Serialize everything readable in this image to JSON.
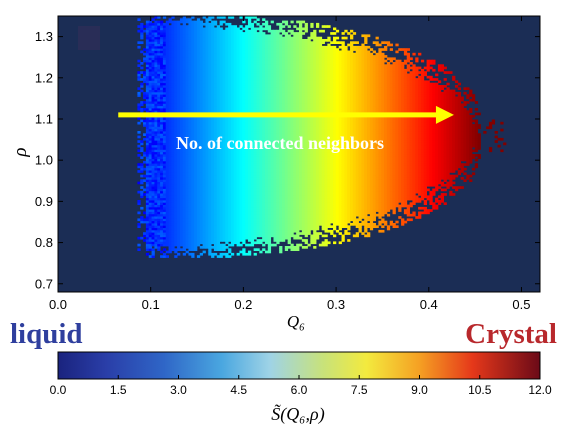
{
  "chart_data": {
    "type": "heatmap",
    "title": "",
    "xlabel": "Q₆",
    "ylabel": "ρ",
    "xlim": [
      0.0,
      0.52
    ],
    "ylim": [
      0.68,
      1.35
    ],
    "x_ticks": [
      0.0,
      0.1,
      0.2,
      0.3,
      0.4,
      0.5
    ],
    "x_tick_labels": [
      "0.0",
      "0.1",
      "0.2",
      "0.3",
      "0.4",
      "0.5"
    ],
    "y_ticks": [
      0.7,
      0.8,
      0.9,
      1.0,
      1.1,
      1.2,
      1.3
    ],
    "y_tick_labels": [
      "0.7",
      "0.8",
      "0.9",
      "1.0",
      "1.1",
      "1.2",
      "1.3"
    ],
    "colormap": "jet",
    "background_color": "#1b2d55",
    "colorbar": {
      "label": "S̃(Q₆,ρ)",
      "range": [
        0.0,
        12.0
      ],
      "ticks": [
        0.0,
        1.5,
        3.0,
        4.5,
        6.0,
        7.5,
        9.0,
        10.5,
        12.0
      ],
      "tick_labels": [
        "0.0",
        "1.5",
        "3.0",
        "4.5",
        "6.0",
        "7.5",
        "9.0",
        "10.5",
        "12.0"
      ],
      "orientation": "horizontal"
    },
    "distribution": {
      "description_region": "populated region in (Q6, rho)",
      "q6_min": 0.095,
      "q6_max": 0.455,
      "rho_center": 1.06,
      "rho_low_at_q6_min": 0.74,
      "rho_high_at_q6_min": 1.3,
      "color_by": "Q6"
    },
    "annotations": [
      {
        "text": "No. of connected neighbors",
        "type": "arrow",
        "x_start": 0.065,
        "x_end": 0.425,
        "y": 1.11,
        "color": "#ffff00"
      },
      {
        "text": "liquid",
        "color": "#2f3f9e"
      },
      {
        "text": "Crystal",
        "color": "#b8282c"
      }
    ]
  }
}
